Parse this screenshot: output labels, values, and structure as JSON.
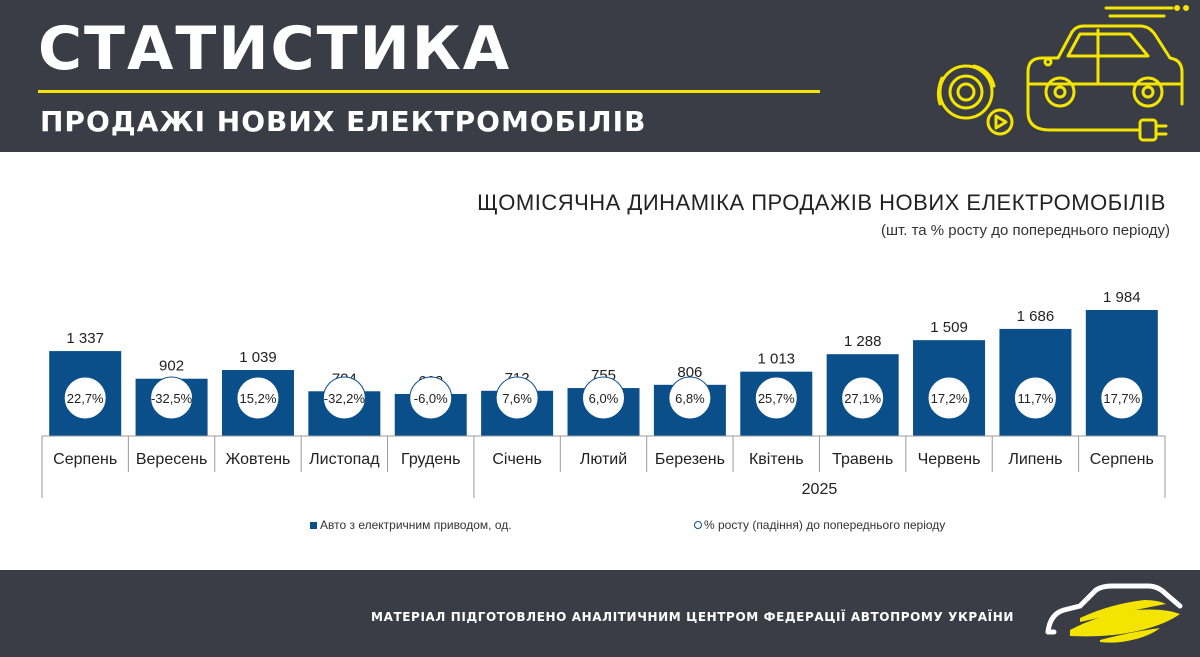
{
  "header": {
    "title": "СТАТИСТИКА",
    "subtitle": "ПРОДАЖІ НОВИХ ЕЛЕКТРОМОБІЛІВ",
    "accent_color": "#f3e500",
    "background_color": "#3a3d45",
    "illustration": "car-charging-gear-icon"
  },
  "chart_data": {
    "type": "bar",
    "title": "ЩОМІСЯЧНА ДИНАМІКА ПРОДАЖІВ НОВИХ ЕЛЕКТРОМОБІЛІВ",
    "subtitle": "(шт. та % росту до попереднього періоду)",
    "categories": [
      "Серпень",
      "Вересень",
      "Жовтень",
      "Листопад",
      "Грудень",
      "Січень",
      "Лютий",
      "Березень",
      "Квітень",
      "Травень",
      "Червень",
      "Липень",
      "Серпень"
    ],
    "groups": [
      {
        "label": "",
        "from": 0,
        "to": 4
      },
      {
        "label": "2025",
        "from": 5,
        "to": 12
      }
    ],
    "series": [
      {
        "name": "Авто з електричним приводом, од.",
        "values": [
          1337,
          902,
          1039,
          704,
          662,
          712,
          755,
          806,
          1013,
          1288,
          1509,
          1686,
          1984
        ],
        "value_labels": [
          "1 337",
          "902",
          "1 039",
          "704",
          "662",
          "712",
          "755",
          "806",
          "1 013",
          "1 288",
          "1 509",
          "1 686",
          "1 984"
        ],
        "color": "#0a4f8a"
      },
      {
        "name": "% росту (падіння) до попереднього періоду",
        "values": [
          22.7,
          -32.5,
          15.2,
          -32.2,
          -6.0,
          7.6,
          6.0,
          6.8,
          25.7,
          27.1,
          17.2,
          11.7,
          17.7
        ],
        "value_labels": [
          "22,7%",
          "-32,5%",
          "15,2%",
          "-32,2%",
          "-6,0%",
          "7,6%",
          "6,0%",
          "6,8%",
          "25,7%",
          "27,1%",
          "17,2%",
          "11,7%",
          "17,7%"
        ],
        "color": "#0a4f8a"
      }
    ],
    "ylim": [
      0,
      2100
    ],
    "grid": false,
    "legend_position": "bottom"
  },
  "footer": {
    "text": "МАТЕРІАЛ ПІДГОТОВЛЕНО АНАЛІТИЧНИМ ЦЕНТРОМ ФЕДЕРАЦІЇ АВТОПРОМУ УКРАЇНИ",
    "logo": "ukrautoprom-car-logo"
  }
}
